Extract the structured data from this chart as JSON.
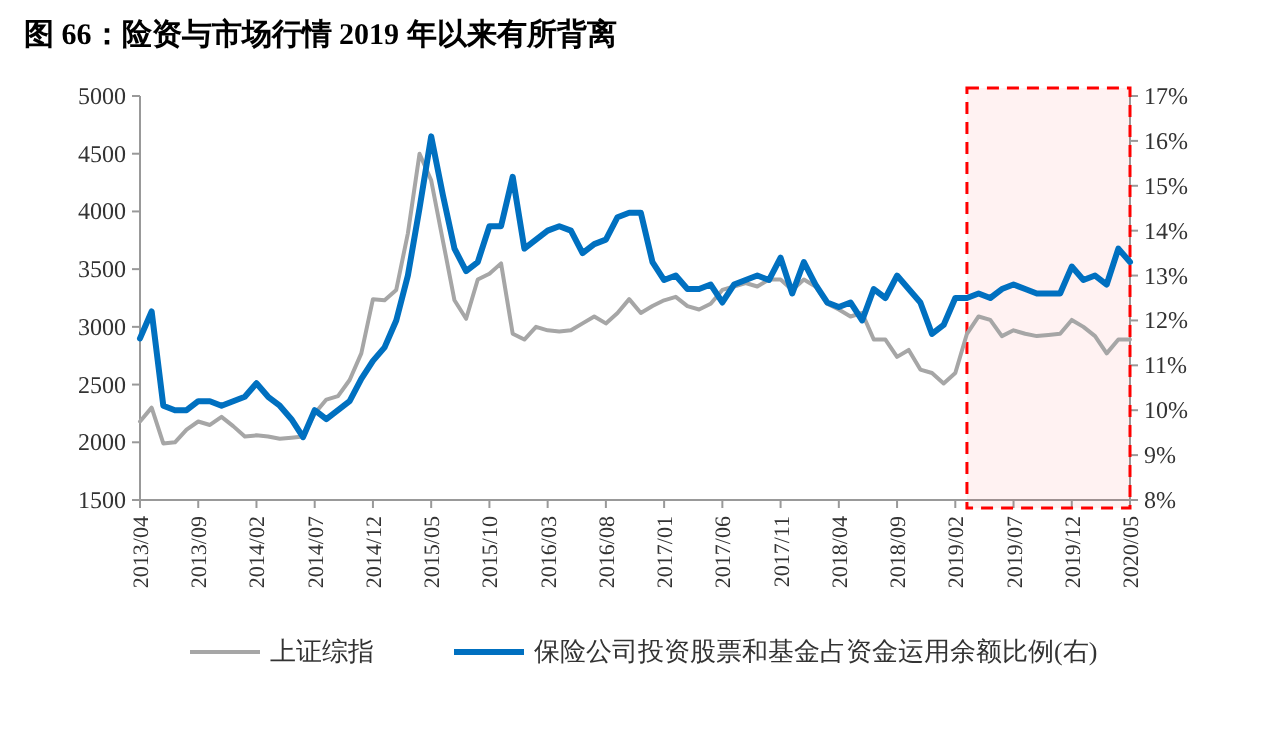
{
  "chart_data": {
    "type": "line",
    "title": "图 66：险资与市场行情 2019 年以来有所背离",
    "x": [
      "2013-04",
      "2013-05",
      "2013-06",
      "2013-07",
      "2013-08",
      "2013-09",
      "2013-10",
      "2013-11",
      "2013-12",
      "2014-01",
      "2014-02",
      "2014-03",
      "2014-04",
      "2014-05",
      "2014-06",
      "2014-07",
      "2014-08",
      "2014-09",
      "2014-10",
      "2014-11",
      "2014-12",
      "2015-01",
      "2015-02",
      "2015-03",
      "2015-04",
      "2015-05",
      "2015-06",
      "2015-07",
      "2015-08",
      "2015-09",
      "2015-10",
      "2015-11",
      "2015-12",
      "2016-01",
      "2016-02",
      "2016-03",
      "2016-04",
      "2016-05",
      "2016-06",
      "2016-07",
      "2016-08",
      "2016-09",
      "2016-10",
      "2016-11",
      "2016-12",
      "2017-01",
      "2017-02",
      "2017-03",
      "2017-04",
      "2017-05",
      "2017-06",
      "2017-07",
      "2017-08",
      "2017-09",
      "2017-10",
      "2017-11",
      "2017-12",
      "2018-01",
      "2018-02",
      "2018-03",
      "2018-04",
      "2018-05",
      "2018-06",
      "2018-07",
      "2018-08",
      "2018-09",
      "2018-10",
      "2018-11",
      "2018-12",
      "2019-01",
      "2019-02",
      "2019-03",
      "2019-04",
      "2019-05",
      "2019-06",
      "2019-07",
      "2019-08",
      "2019-09",
      "2019-10",
      "2019-11",
      "2019-12",
      "2020-01",
      "2020-02",
      "2020-03",
      "2020-04",
      "2020-05"
    ],
    "xlim": [
      "2013-04",
      "2020-05"
    ],
    "xticks": [
      {
        "value": "2013-04",
        "label": "2013/04"
      },
      {
        "value": "2013-09",
        "label": "2013/09"
      },
      {
        "value": "2014-02",
        "label": "2014/02"
      },
      {
        "value": "2014-07",
        "label": "2014/07"
      },
      {
        "value": "2014-12",
        "label": "2014/12"
      },
      {
        "value": "2015-05",
        "label": "2015/05"
      },
      {
        "value": "2015-10",
        "label": "2015/10"
      },
      {
        "value": "2016-03",
        "label": "2016/03"
      },
      {
        "value": "2016-08",
        "label": "2016/08"
      },
      {
        "value": "2017-01",
        "label": "2017/01"
      },
      {
        "value": "2017-06",
        "label": "2017/06"
      },
      {
        "value": "2017-11",
        "label": "2017/11"
      },
      {
        "value": "2018-04",
        "label": "2018/04"
      },
      {
        "value": "2018-09",
        "label": "2018/09"
      },
      {
        "value": "2019-02",
        "label": "2019/02"
      },
      {
        "value": "2019-07",
        "label": "2019/07"
      },
      {
        "value": "2019-12",
        "label": "2019/12"
      },
      {
        "value": "2020-05",
        "label": "2020/05"
      }
    ],
    "ylim": [
      1500,
      5000
    ],
    "yticks": [
      1500,
      2000,
      2500,
      3000,
      3500,
      4000,
      4500,
      5000
    ],
    "y2lim": [
      8,
      17
    ],
    "y2ticks": [
      {
        "value": 8,
        "label": "8%"
      },
      {
        "value": 9,
        "label": "9%"
      },
      {
        "value": 10,
        "label": "10%"
      },
      {
        "value": 11,
        "label": "11%"
      },
      {
        "value": 12,
        "label": "12%"
      },
      {
        "value": 13,
        "label": "13%"
      },
      {
        "value": 14,
        "label": "14%"
      },
      {
        "value": 15,
        "label": "15%"
      },
      {
        "value": 16,
        "label": "16%"
      },
      {
        "value": 17,
        "label": "17%"
      }
    ],
    "series": [
      {
        "name": "上证综指",
        "color": "#a6a6a6",
        "axis": "y",
        "values": [
          2180,
          2300,
          1990,
          2000,
          2110,
          2180,
          2150,
          2220,
          2140,
          2050,
          2060,
          2050,
          2030,
          2040,
          2050,
          2250,
          2370,
          2400,
          2540,
          2770,
          3240,
          3230,
          3320,
          3810,
          4500,
          4270,
          3750,
          3230,
          3070,
          3410,
          3460,
          3550,
          2940,
          2890,
          3000,
          2970,
          2960,
          2970,
          3030,
          3090,
          3030,
          3120,
          3240,
          3120,
          3180,
          3230,
          3260,
          3180,
          3150,
          3200,
          3320,
          3350,
          3380,
          3350,
          3410,
          3410,
          3320,
          3410,
          3350,
          3200,
          3150,
          3090,
          3120,
          2890,
          2890,
          2740,
          2800,
          2630,
          2600,
          2510,
          2600,
          2940,
          3090,
          3060,
          2920,
          2970,
          2940,
          2920,
          2930,
          2940,
          3060,
          3000,
          2920,
          2770,
          2890,
          2890
        ]
      },
      {
        "name": "保险公司投资股票和基金占资金运用余额比例(右)",
        "color": "#0070c0",
        "axis": "y2",
        "values": [
          11.6,
          12.2,
          10.1,
          10.0,
          10.0,
          10.2,
          10.2,
          10.1,
          10.2,
          10.3,
          10.6,
          10.3,
          10.1,
          9.8,
          9.4,
          10.0,
          9.8,
          10.0,
          10.2,
          10.7,
          11.1,
          11.4,
          12.0,
          13.0,
          14.5,
          16.1,
          14.8,
          13.6,
          13.1,
          13.3,
          14.1,
          14.1,
          15.2,
          13.6,
          13.8,
          14.0,
          14.1,
          14.0,
          13.5,
          13.7,
          13.8,
          14.3,
          14.4,
          14.4,
          13.3,
          12.9,
          13.0,
          12.7,
          12.7,
          12.8,
          12.4,
          12.8,
          12.9,
          13.0,
          12.9,
          13.4,
          12.6,
          13.3,
          12.8,
          12.4,
          12.3,
          12.4,
          12.0,
          12.7,
          12.5,
          13.0,
          12.7,
          12.4,
          11.7,
          11.9,
          12.5,
          12.5,
          12.6,
          12.5,
          12.7,
          12.8,
          12.7,
          12.6,
          12.6,
          12.6,
          13.2,
          12.9,
          13.0,
          12.8,
          13.6,
          13.3
        ]
      }
    ],
    "bands": [
      {
        "axis": "x",
        "from": "2019-03",
        "to": "2020-05",
        "color": "#ff0000"
      }
    ],
    "legend": "bottom",
    "grid": false
  }
}
